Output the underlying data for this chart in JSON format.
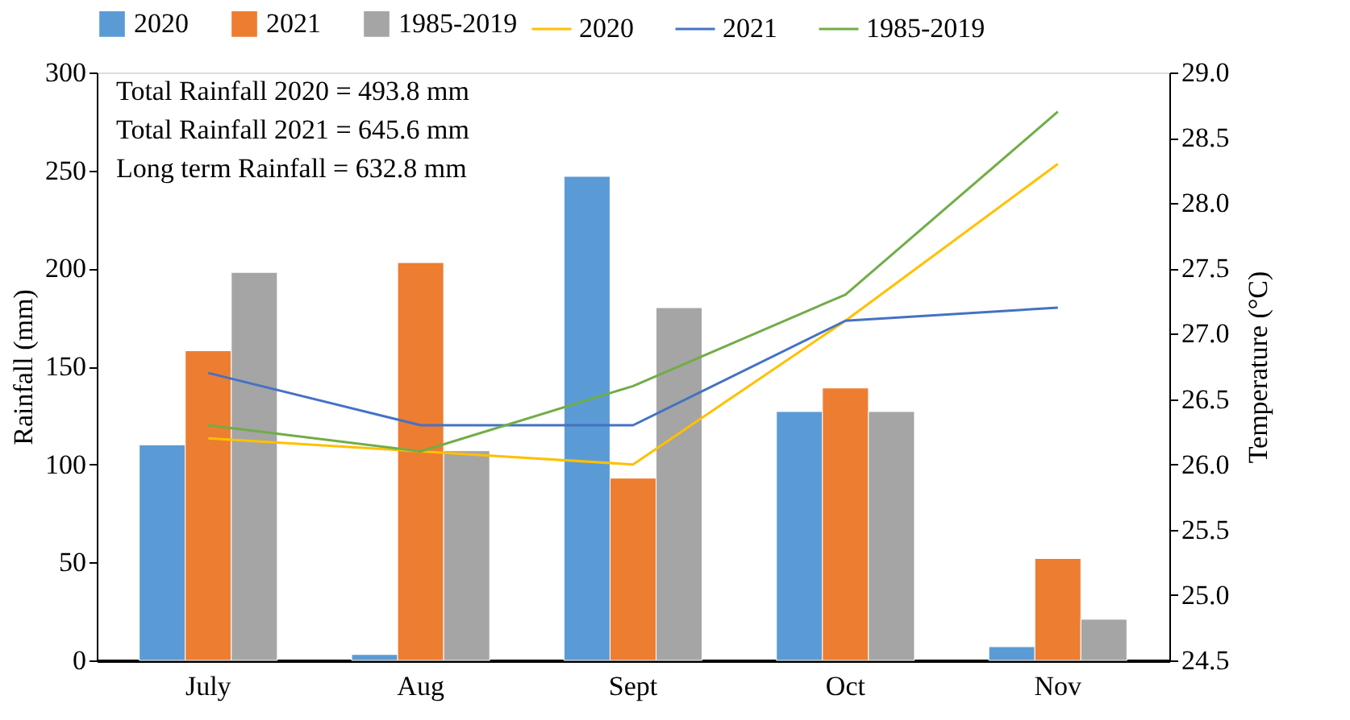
{
  "chart_data": {
    "type": "bar",
    "categories": [
      "July",
      "Aug",
      "Sept",
      "Oct",
      "Nov"
    ],
    "ylabel": "Rainfall (mm)",
    "y2label": "Temperature (°C)",
    "ylim": [
      0,
      300
    ],
    "yticks": [
      0,
      50,
      100,
      150,
      200,
      250,
      300
    ],
    "y2lim": [
      24.5,
      29.0
    ],
    "y2ticks": [
      {
        "value": 24.5,
        "label": "24.5"
      },
      {
        "value": 25,
        "label": "25.0"
      },
      {
        "value": 25.5,
        "label": "25.5"
      },
      {
        "value": 26,
        "label": "26.0"
      },
      {
        "value": 26.5,
        "label": "26.5"
      },
      {
        "value": 27,
        "label": "27.0"
      },
      {
        "value": 27.5,
        "label": "27.5"
      },
      {
        "value": 28,
        "label": "28.0"
      },
      {
        "value": 28.5,
        "label": "28.5"
      },
      {
        "value": 29,
        "label": "29.0"
      }
    ],
    "legend": "top",
    "grid": false,
    "annotations": [
      "Total Rainfall 2020 = 493.8 mm",
      "Total Rainfall 2021 = 645.6 mm",
      "Long term Rainfall = 632.8 mm"
    ],
    "series": [
      {
        "name": "2020",
        "color": "#5b9bd5",
        "values": [
          110,
          3,
          247,
          127,
          7
        ]
      },
      {
        "name": "2021",
        "color": "#ed7d31",
        "values": [
          158,
          203,
          93,
          139,
          52
        ]
      },
      {
        "name": "1985-2019",
        "color": "#a5a5a5",
        "values": [
          198,
          107,
          180,
          127,
          21
        ]
      },
      {
        "name": "2020",
        "type": "line",
        "axis": "y2",
        "color": "#ffc000",
        "values": [
          26.2,
          26.1,
          26.0,
          27.1,
          28.3
        ]
      },
      {
        "name": "2021",
        "type": "line",
        "axis": "y2",
        "color": "#4472c4",
        "values": [
          26.7,
          26.3,
          26.3,
          27.1,
          27.2
        ]
      },
      {
        "name": "1985-2019",
        "type": "line",
        "axis": "y2",
        "color": "#70ad47",
        "values": [
          26.3,
          26.1,
          26.6,
          27.3,
          28.7
        ]
      }
    ]
  }
}
